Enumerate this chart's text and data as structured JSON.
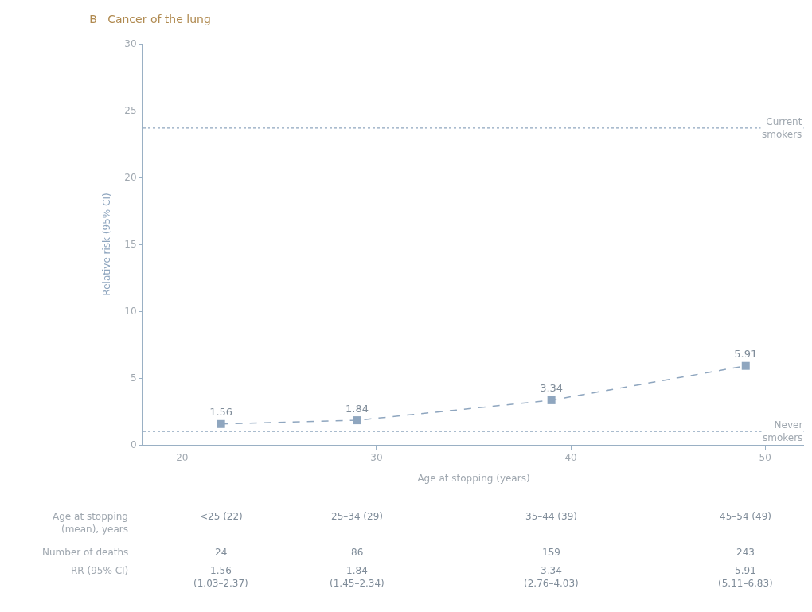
{
  "chart_data": {
    "type": "line",
    "title": "B   Cancer of the lung",
    "xlabel": "Age at stopping (years)",
    "ylabel": "Relative risk (95% CI)",
    "x": [
      22,
      29,
      39,
      49
    ],
    "series": [
      {
        "color": "#8fa6bf",
        "values": [
          1.56,
          1.84,
          3.34,
          5.91
        ]
      }
    ],
    "data_labels": true,
    "marker": "square",
    "line_style": "dashed",
    "xlim": [
      18,
      52
    ],
    "xticks": [
      20,
      30,
      40,
      50
    ],
    "ylim": [
      0,
      30
    ],
    "yticks": [
      0,
      5,
      10,
      15,
      20,
      25,
      30
    ],
    "ref_lines": [
      {
        "axis": "y",
        "value": 23.7,
        "label": "Current\nsmokers",
        "color": "#8fa6bf",
        "line_style": "dotted"
      },
      {
        "axis": "y",
        "value": 1,
        "label": "Never\nsmokers",
        "color": "#8fa6bf",
        "line_style": "dotted"
      }
    ],
    "annotations": [
      "Age at stopping\n(mean), years",
      "<25 (22)",
      "25–34 (29)",
      "35–44 (39)",
      "45–54 (49)",
      "Number of deaths",
      "24",
      "86",
      "159",
      "243",
      "RR (95% CI)",
      "1.56\n(1.03–2.37)",
      "1.84\n(1.45–2.34)",
      "3.34\n(2.76–4.03)",
      "5.91\n(5.11–6.83)"
    ]
  }
}
